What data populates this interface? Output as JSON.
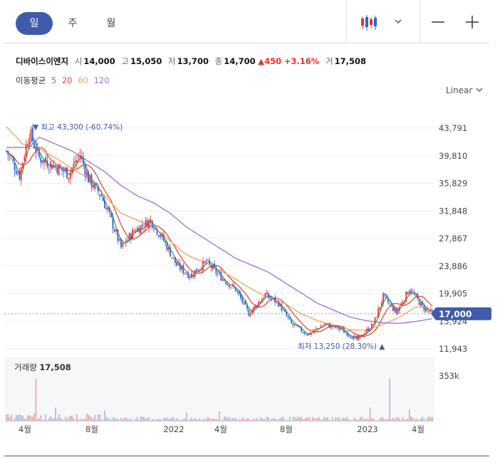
{
  "toolbar": {
    "tabs": [
      {
        "label": "일",
        "active": true
      },
      {
        "label": "주",
        "active": false
      },
      {
        "label": "월",
        "active": false
      }
    ],
    "chart_type_icon": "candlestick-icon",
    "dropdown_icon": "chevron-down-icon",
    "zoom_out_label": "—",
    "zoom_in_label": "+"
  },
  "quote": {
    "name": "디바이스이엔지",
    "open_label": "시",
    "open": "14,000",
    "high_label": "고",
    "high": "15,050",
    "low_label": "저",
    "low": "13,700",
    "close_label": "종",
    "close": "14,700",
    "change": "▲450",
    "change_pct": "+3.16%",
    "volume_label": "거",
    "volume": "17,508"
  },
  "moving_average": {
    "label": "이동평균",
    "periods": [
      {
        "label": "5",
        "color": "#3cab4b"
      },
      {
        "label": "20",
        "color": "#e5483f"
      },
      {
        "label": "60",
        "color": "#f0a35a"
      },
      {
        "label": "120",
        "color": "#9b6fe0"
      }
    ]
  },
  "scale_label": "Linear",
  "colors": {
    "up": "#e8322d",
    "down": "#2e63d6",
    "accent": "#3f5ba9",
    "volume": "#a9b9dd"
  },
  "chart_data": {
    "type": "candlestick",
    "y_axis_ticks": [
      "43,791",
      "39,810",
      "35,829",
      "31,848",
      "27,867",
      "23,886",
      "19,905",
      "15,924",
      "11,943"
    ],
    "y_tick_values": [
      43791,
      39810,
      35829,
      31848,
      27867,
      23886,
      19905,
      15924,
      11943
    ],
    "x_axis_ticks": [
      "4월",
      "8월",
      "2022",
      "4월",
      "8월",
      "2023",
      "4월"
    ],
    "current_price_label": "17,000",
    "current_price": 17000,
    "high_annotation": "▼ 최고 43,300 (-60.74%)",
    "low_annotation": "최저 13,250 (28.30%) ▲",
    "series_path": [
      [
        0,
        40500
      ],
      [
        8,
        37000
      ],
      [
        14,
        43300
      ],
      [
        20,
        39500
      ],
      [
        28,
        38500
      ],
      [
        38,
        37200
      ],
      [
        45,
        40000
      ],
      [
        50,
        36500
      ],
      [
        58,
        34000
      ],
      [
        64,
        30500
      ],
      [
        70,
        26500
      ],
      [
        78,
        29000
      ],
      [
        88,
        30500
      ],
      [
        95,
        28000
      ],
      [
        104,
        24000
      ],
      [
        112,
        22500
      ],
      [
        122,
        24500
      ],
      [
        130,
        22500
      ],
      [
        140,
        20500
      ],
      [
        148,
        17000
      ],
      [
        158,
        19800
      ],
      [
        166,
        18500
      ],
      [
        174,
        15500
      ],
      [
        184,
        14000
      ],
      [
        194,
        15500
      ],
      [
        204,
        14800
      ],
      [
        214,
        13250
      ],
      [
        224,
        15500
      ],
      [
        230,
        19500
      ],
      [
        238,
        17200
      ],
      [
        246,
        20600
      ],
      [
        254,
        18000
      ],
      [
        260,
        17000
      ]
    ],
    "volume_label": "거래량",
    "volume_value": "17,508",
    "volume_axis_label": "353k",
    "volume_axis_max": 353000,
    "volume_spikes": [
      [
        18,
        340000
      ],
      [
        234,
        345000
      ],
      [
        222,
        110000
      ],
      [
        246,
        95000
      ],
      [
        60,
        90000
      ],
      [
        130,
        80000
      ],
      [
        110,
        70000
      ],
      [
        30,
        110000
      ],
      [
        8,
        60000
      ]
    ],
    "ma": {
      "ma60": [
        [
          0,
          44000
        ],
        [
          10,
          41500
        ],
        [
          20,
          40800
        ],
        [
          30,
          39500
        ],
        [
          40,
          38000
        ],
        [
          50,
          36500
        ],
        [
          60,
          34000
        ],
        [
          70,
          31500
        ],
        [
          80,
          30500
        ],
        [
          90,
          29500
        ],
        [
          100,
          27500
        ],
        [
          110,
          25500
        ],
        [
          120,
          24500
        ],
        [
          130,
          23300
        ],
        [
          140,
          22000
        ],
        [
          150,
          20500
        ],
        [
          160,
          19300
        ],
        [
          170,
          18500
        ],
        [
          180,
          17000
        ],
        [
          190,
          16000
        ],
        [
          200,
          15300
        ],
        [
          210,
          14700
        ],
        [
          220,
          14600
        ],
        [
          230,
          15500
        ],
        [
          240,
          16500
        ],
        [
          250,
          18000
        ],
        [
          260,
          17800
        ]
      ],
      "ma120": [
        [
          14,
          41000
        ],
        [
          20,
          42500
        ],
        [
          30,
          41500
        ],
        [
          40,
          40500
        ],
        [
          50,
          39000
        ],
        [
          60,
          37500
        ],
        [
          70,
          35500
        ],
        [
          80,
          34000
        ],
        [
          90,
          33000
        ],
        [
          100,
          31500
        ],
        [
          110,
          29500
        ],
        [
          120,
          28000
        ],
        [
          130,
          26500
        ],
        [
          140,
          25000
        ],
        [
          150,
          24000
        ],
        [
          160,
          23000
        ],
        [
          170,
          21500
        ],
        [
          180,
          20000
        ],
        [
          190,
          18500
        ],
        [
          200,
          17500
        ],
        [
          210,
          16500
        ],
        [
          220,
          16000
        ],
        [
          230,
          15700
        ],
        [
          240,
          15600
        ],
        [
          250,
          15900
        ],
        [
          260,
          16300
        ]
      ]
    }
  }
}
